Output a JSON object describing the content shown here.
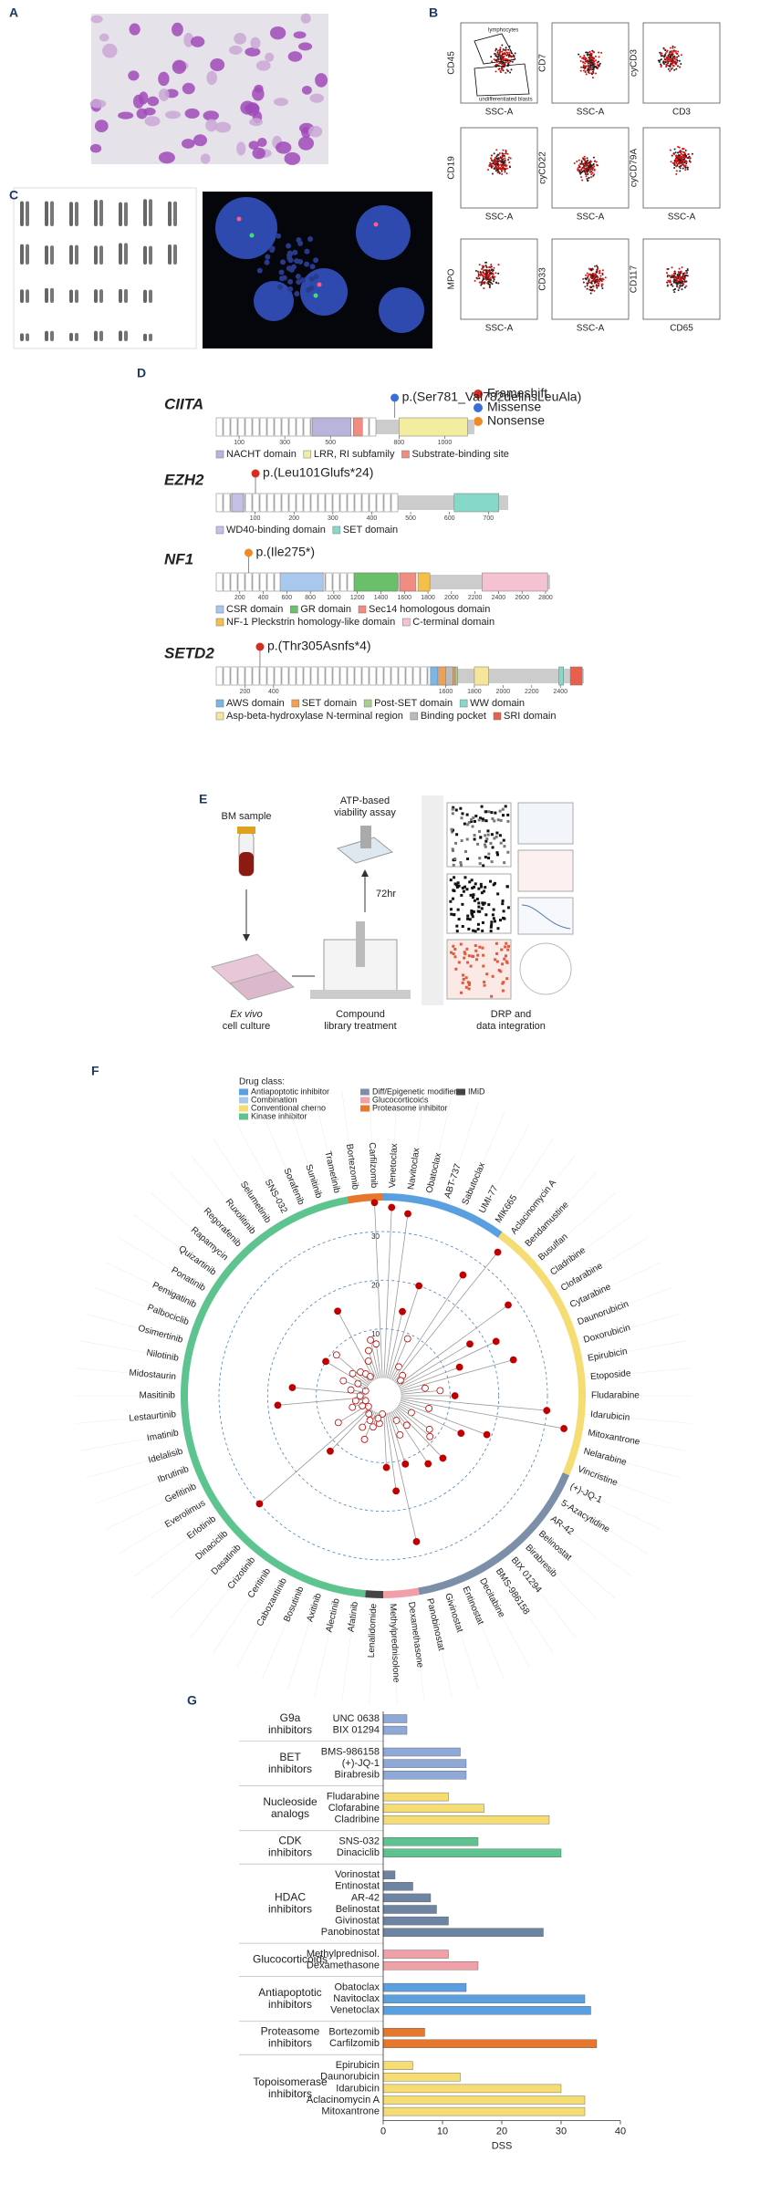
{
  "panel_labels": [
    "A",
    "B",
    "C",
    "D",
    "E",
    "F",
    "G"
  ],
  "flow": {
    "plots": [
      {
        "y": "CD45",
        "x": "SSC-A",
        "gates": [
          "lymphocytes",
          "undifferentiated blasts"
        ]
      },
      {
        "y": "CD7",
        "x": "SSC-A"
      },
      {
        "y": "cyCD3",
        "x": "CD3"
      },
      {
        "y": "CD19",
        "x": "SSC-A"
      },
      {
        "y": "cyCD22",
        "x": "SSC-A"
      },
      {
        "y": "cyCD79A",
        "x": "SSC-A"
      },
      {
        "y": "MPO",
        "x": "SSC-A"
      },
      {
        "y": "CD33",
        "x": "SSC-A"
      },
      {
        "y": "CD117",
        "x": "CD65"
      }
    ]
  },
  "proteins": {
    "mutation_legend": [
      {
        "name": "Frameshift",
        "color": "#d62d20"
      },
      {
        "name": "Missense",
        "color": "#3a6fd8"
      },
      {
        "name": "Nonsense",
        "color": "#f08a24"
      }
    ],
    "items": [
      {
        "gene": "CIITA",
        "variant": "p.(Ser781_Val782delinsLeuAla)",
        "type": 1,
        "position": 781,
        "xlim": [
          0,
          1130
        ],
        "xticks": [
          100,
          300,
          500,
          800,
          1000
        ],
        "domain_legend": [
          {
            "name": "NACHT domain",
            "color": "#b9b4dc"
          },
          {
            "name": "LRR, RI subfamily",
            "color": "#f3eda0"
          },
          {
            "name": "Substrate-binding site",
            "color": "#f08c80"
          }
        ],
        "domains": [
          {
            "start": 420,
            "end": 590,
            "legend": 0
          },
          {
            "start": 600,
            "end": 640,
            "legend": 2
          },
          {
            "start": 800,
            "end": 1100,
            "legend": 1
          }
        ]
      },
      {
        "gene": "EZH2",
        "variant": "p.(Leu101Glufs*24)",
        "type": 0,
        "position": 101,
        "xlim": [
          0,
          751
        ],
        "xticks": [
          100,
          200,
          300,
          400,
          500,
          600,
          700
        ],
        "domain_legend": [
          {
            "name": "WD40-binding domain",
            "color": "#c5c0e6"
          },
          {
            "name": "SET domain",
            "color": "#86d8c9"
          }
        ],
        "domains": [
          {
            "start": 40,
            "end": 70,
            "legend": 0
          },
          {
            "start": 612,
            "end": 727,
            "legend": 1
          }
        ]
      },
      {
        "gene": "NF1",
        "variant": "p.(Ile275*)",
        "type": 2,
        "position": 275,
        "xlim": [
          0,
          2839
        ],
        "xticks": [
          200,
          400,
          600,
          800,
          1000,
          1200,
          1400,
          1600,
          1800,
          2000,
          2200,
          2400,
          2600,
          2800
        ],
        "domain_legend": [
          {
            "name": "CSR domain",
            "color": "#a9c8ee"
          },
          {
            "name": "GR domain",
            "color": "#6abf69"
          },
          {
            "name": "Sec14 homologous domain",
            "color": "#f08c80"
          },
          {
            "name": "NF-1 Pleckstrin homology-like domain",
            "color": "#f5c04a"
          },
          {
            "name": "C-terminal domain",
            "color": "#f4c2d0"
          }
        ],
        "domains": [
          {
            "start": 543,
            "end": 909,
            "legend": 0
          },
          {
            "start": 1172,
            "end": 1538,
            "legend": 1
          },
          {
            "start": 1560,
            "end": 1698,
            "legend": 2
          },
          {
            "start": 1715,
            "end": 1816,
            "legend": 3
          },
          {
            "start": 2260,
            "end": 2817,
            "legend": 4
          }
        ]
      },
      {
        "gene": "SETD2",
        "variant": "p.(Thr305Asnfs*4)",
        "type": 0,
        "position": 305,
        "xlim": [
          0,
          2564
        ],
        "xticks": [
          200,
          400,
          1600,
          1800,
          2000,
          2200,
          2400
        ],
        "domain_legend": [
          {
            "name": "AWS domain",
            "color": "#7ab6e6"
          },
          {
            "name": "SET domain",
            "color": "#f0a050"
          },
          {
            "name": "Post-SET domain",
            "color": "#a8d08d"
          },
          {
            "name": "WW domain",
            "color": "#86d8c9"
          },
          {
            "name": "Asp-beta-hydroxylase N-terminal region",
            "color": "#f5e69a"
          },
          {
            "name": "Binding pocket",
            "color": "#bbbbbb"
          },
          {
            "name": "SRI domain",
            "color": "#e8604c"
          }
        ],
        "domains": [
          {
            "start": 1494,
            "end": 1545,
            "legend": 0
          },
          {
            "start": 1550,
            "end": 1666,
            "legend": 1
          },
          {
            "start": 1667,
            "end": 1683,
            "legend": 2
          },
          {
            "start": 1600,
            "end": 1650,
            "legend": 5
          },
          {
            "start": 1800,
            "end": 1900,
            "legend": 4
          },
          {
            "start": 2389,
            "end": 2422,
            "legend": 3
          },
          {
            "start": 2469,
            "end": 2552,
            "legend": 6
          }
        ]
      }
    ]
  },
  "workflow": {
    "bm_sample": "BM sample",
    "assay_1": "ATP-based",
    "assay_2": "viability assay",
    "duration": "72hr",
    "culture_1": "Ex vivo",
    "culture_2": "cell culture",
    "treatment_1": "Compound",
    "treatment_2": "library treatment",
    "drp_1": "DRP and",
    "drp_2": "data integration"
  },
  "chart_data": [
    {
      "type": "radial_lollipop",
      "legend_title": "Drug class:",
      "classes": [
        {
          "name": "Antiapoptotic inhibitor",
          "color": "#5aa0e0"
        },
        {
          "name": "Combination",
          "color": "#a8c8e8"
        },
        {
          "name": "Conventional chemo",
          "color": "#f5dc73"
        },
        {
          "name": "Kinase inhibitor",
          "color": "#5ec48f"
        },
        {
          "name": "Diff/Epigenetic modifiers",
          "color": "#7b8fa8"
        },
        {
          "name": "Glucocorticoids",
          "color": "#f2a0a8"
        },
        {
          "name": "Proteasome inhibitor",
          "color": "#e8772e"
        },
        {
          "name": "IMiD",
          "color": "#444444"
        }
      ],
      "categories": [
        "Venetoclax",
        "Navitoclax",
        "Obatoclax",
        "ABT-737",
        "Sabutoclax",
        "UMI-77",
        "MIK665",
        "Aclacinomycin A",
        "Bendamustine",
        "Busulfan",
        "Cladribine",
        "Clofarabine",
        "Cytarabine",
        "Daunorubicin",
        "Doxorubicin",
        "Epirubicin",
        "Etoposide",
        "Fludarabine",
        "Idarubicin",
        "Mitoxantrone",
        "Nelarabine",
        "Vincristine",
        "(+)-JQ-1",
        "5-Azacytidine",
        "AR-42",
        "Belinostat",
        "Birabresib",
        "BIX 01294",
        "BMS-986158",
        "Decitabine",
        "Entinostat",
        "Givinostat",
        "Panobinostat",
        "Dexamethasone",
        "Methylprednisolone",
        "Lenalidomide",
        "Afatinib",
        "Alectinib",
        "Axitinib",
        "Bosutinib",
        "Cabozantinib",
        "Ceritinib",
        "Crizotinib",
        "Dasatinib",
        "Dinaciclib",
        "Erlotinib",
        "Everolimus",
        "Gefitinib",
        "Ibrutinib",
        "Idelalisib",
        "Imatinib",
        "Lestaurtinib",
        "Masitinib",
        "Midostaurin",
        "Nilotinib",
        "Osimertinib",
        "Palbociclib",
        "Pemigatinib",
        "Ponatinib",
        "Quizartinib",
        "Rapamycin",
        "Regorafenib",
        "Ruxolitinib",
        "Selumetinib",
        "SNS-032",
        "Sorafenib",
        "Sunitinib",
        "Trametinib",
        "Bortezomib",
        "Carfilzomib"
      ],
      "class_index": [
        0,
        0,
        0,
        0,
        0,
        0,
        0,
        2,
        2,
        2,
        2,
        2,
        2,
        2,
        2,
        2,
        2,
        2,
        2,
        2,
        2,
        2,
        4,
        4,
        4,
        4,
        4,
        4,
        4,
        4,
        4,
        4,
        4,
        5,
        5,
        7,
        3,
        3,
        3,
        3,
        3,
        3,
        3,
        3,
        3,
        3,
        3,
        3,
        3,
        3,
        3,
        3,
        3,
        3,
        3,
        3,
        3,
        3,
        3,
        3,
        3,
        3,
        3,
        3,
        3,
        3,
        3,
        3,
        6,
        6
      ],
      "values": [
        35,
        34,
        14,
        20,
        9,
        3,
        26,
        34,
        2,
        1,
        28,
        17,
        22,
        13,
        24,
        5,
        8,
        11,
        30,
        34,
        6,
        19,
        14,
        3,
        8,
        9,
        14,
        4,
        13,
        2,
        5,
        11,
        27,
        16,
        11,
        0,
        2,
        1,
        3,
        6,
        2,
        4,
        1,
        12,
        30,
        0,
        7,
        1,
        3,
        0,
        2,
        18,
        1,
        15,
        3,
        0,
        5,
        2,
        10,
        4,
        9,
        3,
        2,
        1,
        16,
        4,
        6,
        8,
        7,
        36
      ],
      "rlim": [
        0,
        36
      ],
      "rticks": [
        10,
        20,
        30
      ]
    },
    {
      "type": "bar",
      "orientation": "horizontal",
      "groups": [
        {
          "label_lines": [
            "G9a",
            "inhibitors"
          ],
          "color": "#8ea9d8"
        },
        {
          "label_lines": [
            "BET",
            "inhibitors"
          ],
          "color": "#8ea9d8"
        },
        {
          "label_lines": [
            "Nucleoside",
            "analogs"
          ],
          "color": "#f5dc73"
        },
        {
          "label_lines": [
            "CDK",
            "inhibitors"
          ],
          "color": "#5ec48f"
        },
        {
          "label_lines": [
            "HDAC",
            "inhibitors"
          ],
          "color": "#6d84a3"
        },
        {
          "label_lines": [
            "Glucocorticoids"
          ],
          "color": "#f2a0a8"
        },
        {
          "label_lines": [
            "Antiapoptotic",
            "inhibitors"
          ],
          "color": "#5aa0e0"
        },
        {
          "label_lines": [
            "Proteasome",
            "inhibitors"
          ],
          "color": "#e8772e"
        },
        {
          "label_lines": [
            "Topoisomerase",
            "inhibitors"
          ],
          "color": "#f5dc73"
        }
      ],
      "categories": [
        "UNC 0638",
        "BIX 01294",
        "BMS-986158",
        "(+)-JQ-1",
        "Birabresib",
        "Fludarabine",
        "Clofarabine",
        "Cladribine",
        "SNS-032",
        "Dinaciclib",
        "Vorinostat",
        "Entinostat",
        "AR-42",
        "Belinostat",
        "Givinostat",
        "Panobinostat",
        "Methylprednisol.",
        "Dexamethasone",
        "Obatoclax",
        "Navitoclax",
        "Venetoclax",
        "Bortezomib",
        "Carfilzomib",
        "Epirubicin",
        "Daunorubicin",
        "Idarubicin",
        "Aclacinomycin A",
        "Mitoxantrone"
      ],
      "group_index": [
        0,
        0,
        1,
        1,
        1,
        2,
        2,
        2,
        3,
        3,
        4,
        4,
        4,
        4,
        4,
        4,
        5,
        5,
        6,
        6,
        6,
        7,
        7,
        8,
        8,
        8,
        8,
        8
      ],
      "values": [
        4,
        4,
        13,
        14,
        14,
        11,
        17,
        28,
        16,
        30,
        2,
        5,
        8,
        9,
        11,
        27,
        11,
        16,
        14,
        34,
        35,
        7,
        36,
        5,
        13,
        30,
        34,
        34
      ],
      "xlim": [
        0,
        40
      ],
      "xticks": [
        0,
        10,
        20,
        30,
        40
      ],
      "xlabel": "DSS"
    }
  ]
}
